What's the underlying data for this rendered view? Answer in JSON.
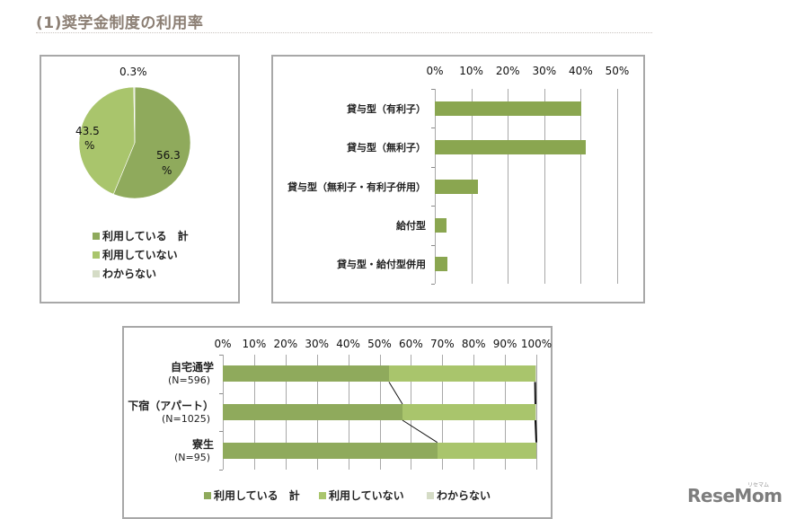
{
  "title": "(1)奨学金制度の利用率",
  "colors": {
    "using": "#8faa5c",
    "not_using": "#a9c56c",
    "unknown": "#d5dcc6",
    "bar_green": "#8aa650",
    "grid": "#a8a8a8"
  },
  "pie": {
    "labels": {
      "unknown": "0.3%",
      "not_using_1": "43.5",
      "not_using_2": "%",
      "using_1": "56.3",
      "using_2": "%"
    },
    "legend": [
      "利用している　計",
      "利用していない",
      "わからない"
    ]
  },
  "bar": {
    "axis_ticks": [
      "0%",
      "10%",
      "20%",
      "30%",
      "40%",
      "50%"
    ],
    "categories": [
      "貸与型（有利子）",
      "貸与型（無利子）",
      "貸与型（無利子・有利子併用）",
      "給付型",
      "貸与型・給付型併用"
    ]
  },
  "stack": {
    "axis_ticks": [
      "0%",
      "10%",
      "20%",
      "30%",
      "40%",
      "50%",
      "60%",
      "70%",
      "80%",
      "90%",
      "100%"
    ],
    "rows": [
      {
        "name": "自宅通学",
        "n": "(N=596)"
      },
      {
        "name": "下宿（アパート）",
        "n": "(N=1025)"
      },
      {
        "name": "寮生",
        "n": "(N=95)"
      }
    ],
    "legend": [
      "利用している　計",
      "利用していない",
      "わからない"
    ]
  },
  "logo": {
    "text": "ReseMom",
    "small": "リセマム"
  },
  "chart_data": [
    {
      "type": "pie",
      "title": "",
      "categories": [
        "利用している　計",
        "利用していない",
        "わからない"
      ],
      "values": [
        56.3,
        43.5,
        0.3
      ],
      "legend_position": "bottom"
    },
    {
      "type": "bar",
      "orientation": "horizontal",
      "title": "",
      "categories": [
        "貸与型（有利子）",
        "貸与型（無利子）",
        "貸与型（無利子・有利子併用）",
        "給付型",
        "貸与型・給付型併用"
      ],
      "values": [
        40.2,
        41.4,
        11.7,
        3.1,
        3.4
      ],
      "xlim": [
        0,
        50
      ],
      "xticks": [
        "0%",
        "10%",
        "20%",
        "30%",
        "40%",
        "50%"
      ],
      "grid": true,
      "xaxis_position": "top"
    },
    {
      "type": "bar",
      "orientation": "horizontal",
      "stacked": "percent",
      "title": "",
      "categories": [
        "自宅通学 (N=596)",
        "下宿（アパート） (N=1025)",
        "寮生 (N=95)"
      ],
      "series": [
        {
          "name": "利用している　計",
          "values": [
            53.0,
            57.3,
            68.4
          ]
        },
        {
          "name": "利用していない",
          "values": [
            46.6,
            42.4,
            31.6
          ]
        },
        {
          "name": "わからない",
          "values": [
            0.4,
            0.3,
            0.0
          ]
        }
      ],
      "xlim": [
        0,
        100
      ],
      "xticks": [
        "0%",
        "10%",
        "20%",
        "30%",
        "40%",
        "50%",
        "60%",
        "70%",
        "80%",
        "90%",
        "100%"
      ],
      "grid": true,
      "series_lines": true,
      "legend_position": "bottom",
      "xaxis_position": "top"
    }
  ]
}
